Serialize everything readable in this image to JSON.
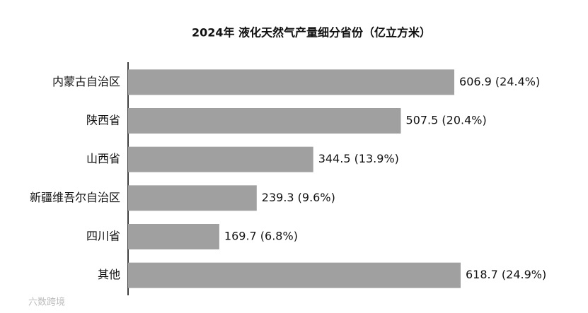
{
  "chart_data": {
    "type": "bar",
    "orientation": "horizontal",
    "title": "2024年 液化天然气产量细分省份（亿立方米）",
    "categories": [
      "内蒙古自治区",
      "陕西省",
      "山西省",
      "新疆维吾尔自治区",
      "四川省",
      "其他"
    ],
    "values": [
      606.9,
      507.5,
      344.5,
      239.3,
      169.7,
      618.7
    ],
    "value_labels": [
      "606.9 (24.4%)",
      "507.5 (20.4%)",
      "344.5 (13.9%)",
      "239.3 (9.6%)",
      "169.7 (6.8%)",
      "618.7 (24.9%)"
    ],
    "color": "#a0a0a0"
  },
  "footer": {
    "logo": "六数跨境"
  }
}
